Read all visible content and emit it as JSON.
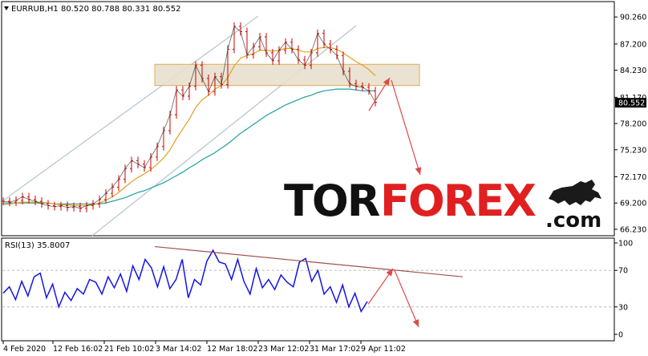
{
  "header": {
    "symbol_line": "EURRUB,H1  80.520 80.788 80.331 80.552",
    "rsi_line": "RSI(13) 35.8007"
  },
  "colors": {
    "candle": "#cc0000",
    "ma_fast": "#e0a020",
    "ma_slow": "#20a0a0",
    "channel": "#b8c8d0",
    "zone_fill": "#e8e0d0",
    "zone_border": "#e0a040",
    "arrow": "#e04848",
    "rsi_line": "#1414e6",
    "rsi_trend": "#a05050",
    "price_tag": "#000000",
    "watermark_black": "#111111",
    "watermark_red": "#e02020"
  },
  "watermark": {
    "part1": "TOR",
    "part2": "FOREX",
    "part3": ".com"
  },
  "chart_data": [
    {
      "type": "line",
      "title": "EURRUB,H1",
      "price_axis_ticks": [
        "90.260",
        "87.200",
        "84.230",
        "81.170",
        "78.200",
        "75.230",
        "72.170",
        "69.200",
        "66.230"
      ],
      "price_tick_values": [
        90.26,
        87.2,
        84.23,
        81.17,
        78.2,
        75.23,
        72.17,
        69.2,
        66.23
      ],
      "current_price": "80.552",
      "x_ticks": [
        "4 Feb 2020",
        "12 Feb 16:02",
        "21 Feb 10:02",
        "3 Mar 14:02",
        "12 Mar 18:02",
        "23 Mar 12:02",
        "31 Mar 17:02",
        "9 Apr 11:02"
      ],
      "price_close": [
        69.4,
        69.3,
        69.5,
        69.9,
        69.6,
        69.4,
        69.1,
        68.9,
        68.8,
        68.9,
        68.7,
        68.8,
        68.6,
        68.9,
        69.1,
        69.6,
        70.3,
        71.0,
        71.9,
        73.1,
        74.0,
        73.6,
        73.2,
        74.4,
        75.6,
        77.4,
        79.2,
        82.0,
        81.3,
        82.4,
        84.8,
        83.3,
        81.8,
        83.5,
        82.6,
        86.6,
        89.2,
        88.6,
        86.0,
        86.9,
        88.0,
        86.2,
        85.3,
        86.5,
        87.4,
        86.6,
        85.4,
        84.8,
        86.2,
        88.4,
        87.2,
        86.6,
        85.9,
        84.1,
        82.7,
        82.4,
        82.3,
        81.9,
        80.6
      ],
      "ma_fast": [
        69.0,
        69.1,
        69.2,
        69.3,
        69.3,
        69.3,
        69.3,
        69.2,
        69.1,
        69.0,
        69.0,
        68.9,
        68.9,
        68.9,
        69.0,
        69.2,
        69.5,
        69.9,
        70.4,
        71.0,
        71.6,
        72.1,
        72.5,
        73.0,
        73.6,
        74.3,
        75.2,
        76.5,
        77.6,
        78.7,
        80.0,
        80.9,
        81.4,
        82.1,
        82.5,
        83.4,
        84.7,
        85.6,
        85.9,
        86.1,
        86.5,
        86.5,
        86.4,
        86.5,
        86.7,
        86.7,
        86.5,
        86.3,
        86.3,
        86.7,
        86.8,
        86.8,
        86.6,
        86.2,
        85.7,
        85.2,
        84.8,
        84.3,
        83.6
      ],
      "ma_slow": [
        69.2,
        69.2,
        69.2,
        69.2,
        69.2,
        69.2,
        69.2,
        69.2,
        69.1,
        69.1,
        69.1,
        69.1,
        69.1,
        69.1,
        69.1,
        69.1,
        69.2,
        69.4,
        69.6,
        69.8,
        70.1,
        70.4,
        70.6,
        70.9,
        71.2,
        71.5,
        71.9,
        72.3,
        72.7,
        73.2,
        73.6,
        74.1,
        74.5,
        74.9,
        75.4,
        75.9,
        76.5,
        77.1,
        77.6,
        78.1,
        78.6,
        79.1,
        79.5,
        79.9,
        80.3,
        80.6,
        80.9,
        81.2,
        81.4,
        81.7,
        81.9,
        82.0,
        82.1,
        82.1,
        82.1,
        82.0,
        81.9,
        81.9,
        81.9
      ],
      "resistance_zone": [
        82.5,
        84.9
      ],
      "ylim": [
        65.5,
        92.0
      ]
    },
    {
      "type": "line",
      "title": "RSI(13)",
      "rsi_ticks": [
        "100",
        "70",
        "30",
        "0"
      ],
      "rsi_tick_values": [
        100,
        70,
        30,
        0
      ],
      "values": [
        45,
        52,
        38,
        58,
        42,
        63,
        67,
        40,
        55,
        30,
        46,
        37,
        50,
        44,
        60,
        57,
        44,
        63,
        51,
        66,
        47,
        75,
        60,
        82,
        73,
        52,
        74,
        50,
        60,
        82,
        40,
        60,
        54,
        80,
        92,
        79,
        77,
        60,
        82,
        58,
        44,
        72,
        51,
        60,
        49,
        65,
        57,
        52,
        79,
        83,
        58,
        70,
        44,
        52,
        35,
        54,
        30,
        45,
        25,
        36
      ],
      "ylim": [
        0,
        100
      ]
    }
  ]
}
